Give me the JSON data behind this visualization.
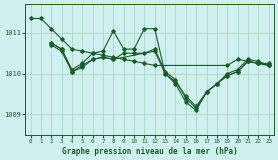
{
  "background_color": "#cff0ee",
  "grid_color": "#b0d8cc",
  "line_color": "#1a5c2a",
  "xlabel": "Graphe pression niveau de la mer (hPa)",
  "xlim": [
    -0.5,
    23.5
  ],
  "ylim": [
    1008.5,
    1011.7
  ],
  "yticks": [
    1009,
    1010,
    1011
  ],
  "xticks": [
    0,
    1,
    2,
    3,
    4,
    5,
    6,
    7,
    8,
    9,
    10,
    11,
    12,
    13,
    14,
    15,
    16,
    17,
    18,
    19,
    20,
    21,
    22,
    23
  ],
  "lines": [
    {
      "x": [
        0,
        1,
        2,
        3,
        4,
        5,
        6,
        7,
        8,
        9,
        10,
        11,
        12,
        19,
        20,
        21,
        22,
        23
      ],
      "y": [
        1011.35,
        1011.35,
        1011.1,
        1010.85,
        1010.6,
        1010.55,
        1010.5,
        1010.45,
        1010.4,
        1010.35,
        1010.3,
        1010.25,
        1010.2,
        1010.2,
        1010.35,
        1010.3,
        1010.25,
        1010.25
      ]
    },
    {
      "x": [
        2,
        3,
        4,
        5,
        6,
        7,
        8,
        9,
        10,
        11,
        12,
        13,
        14,
        15,
        16,
        17,
        18,
        19,
        20,
        21,
        22,
        23
      ],
      "y": [
        1010.75,
        1010.6,
        1010.1,
        1010.25,
        1010.5,
        1010.55,
        1011.05,
        1010.6,
        1010.6,
        1011.1,
        1011.1,
        1010.0,
        1009.8,
        1009.45,
        1009.2,
        1009.55,
        1009.75,
        1010.0,
        1010.1,
        1010.35,
        1010.3,
        1010.2
      ]
    },
    {
      "x": [
        2,
        3,
        4,
        5,
        6,
        7,
        8,
        9,
        10,
        11,
        12,
        13,
        14,
        15,
        16,
        17,
        18,
        19,
        20,
        21,
        22,
        23
      ],
      "y": [
        1010.7,
        1010.55,
        1010.05,
        1010.15,
        1010.35,
        1010.4,
        1010.35,
        1010.5,
        1010.5,
        1010.5,
        1010.6,
        1010.05,
        1009.85,
        1009.4,
        1009.15,
        1009.55,
        1009.75,
        1009.95,
        1010.05,
        1010.3,
        1010.25,
        1010.2
      ]
    },
    {
      "x": [
        2,
        3,
        4,
        5,
        6,
        7,
        8,
        12,
        13,
        14,
        15,
        16,
        17,
        18,
        19,
        20,
        21,
        22,
        23
      ],
      "y": [
        1010.75,
        1010.6,
        1010.05,
        1010.2,
        1010.35,
        1010.4,
        1010.35,
        1010.55,
        1010.0,
        1009.75,
        1009.3,
        1009.1,
        1009.55,
        1009.75,
        1009.95,
        1010.05,
        1010.3,
        1010.25,
        1010.2
      ]
    }
  ]
}
